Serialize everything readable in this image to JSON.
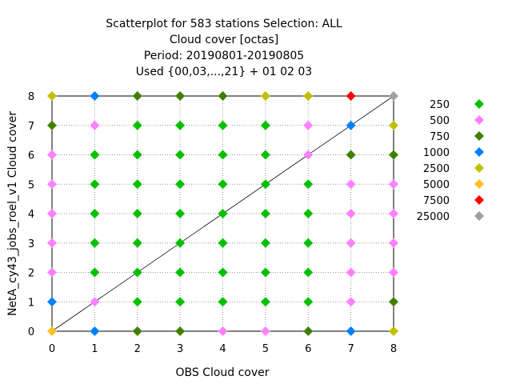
{
  "chart_data": {
    "type": "scatter",
    "title_lines": [
      "Scatterplot for  583 stations Selection: ALL",
      "Cloud cover [octas]",
      "Period: 20190801-20190805",
      "Used {00,03,...,21} + 01 02 03"
    ],
    "xlabel": "OBS Cloud cover",
    "ylabel": "NetA_cy43_jobs_roel_v1 Cloud cover",
    "xlim": [
      0,
      8
    ],
    "ylim": [
      0,
      8
    ],
    "xticks": [
      "0",
      "1",
      "2",
      "3",
      "4",
      "5",
      "6",
      "7",
      "8"
    ],
    "yticks": [
      "0",
      "1",
      "2",
      "3",
      "4",
      "5",
      "6",
      "7",
      "8"
    ],
    "grid": true,
    "diagonal": true,
    "legend_position": "right",
    "series": [
      {
        "name": "250",
        "color": "#00c000",
        "points": [
          [
            1,
            2
          ],
          [
            1,
            3
          ],
          [
            1,
            4
          ],
          [
            1,
            5
          ],
          [
            1,
            6
          ],
          [
            2,
            1
          ],
          [
            2,
            2
          ],
          [
            2,
            3
          ],
          [
            2,
            4
          ],
          [
            2,
            5
          ],
          [
            2,
            6
          ],
          [
            2,
            7
          ],
          [
            3,
            1
          ],
          [
            3,
            2
          ],
          [
            3,
            3
          ],
          [
            3,
            4
          ],
          [
            3,
            5
          ],
          [
            3,
            6
          ],
          [
            3,
            7
          ],
          [
            4,
            1
          ],
          [
            4,
            2
          ],
          [
            4,
            3
          ],
          [
            4,
            4
          ],
          [
            4,
            5
          ],
          [
            4,
            6
          ],
          [
            4,
            7
          ],
          [
            5,
            1
          ],
          [
            5,
            2
          ],
          [
            5,
            3
          ],
          [
            5,
            4
          ],
          [
            5,
            5
          ],
          [
            5,
            6
          ],
          [
            5,
            7
          ],
          [
            6,
            1
          ],
          [
            6,
            2
          ],
          [
            6,
            3
          ],
          [
            6,
            4
          ],
          [
            6,
            5
          ]
        ]
      },
      {
        "name": "500",
        "color": "#ff80ff",
        "points": [
          [
            0,
            2
          ],
          [
            0,
            3
          ],
          [
            0,
            4
          ],
          [
            0,
            5
          ],
          [
            0,
            6
          ],
          [
            1,
            1
          ],
          [
            1,
            7
          ],
          [
            4,
            0
          ],
          [
            5,
            0
          ],
          [
            6,
            6
          ],
          [
            6,
            7
          ],
          [
            7,
            1
          ],
          [
            7,
            2
          ],
          [
            7,
            3
          ],
          [
            7,
            4
          ],
          [
            7,
            5
          ],
          [
            8,
            2
          ],
          [
            8,
            3
          ],
          [
            8,
            4
          ],
          [
            8,
            5
          ]
        ]
      },
      {
        "name": "750",
        "color": "#408000",
        "points": [
          [
            0,
            7
          ],
          [
            2,
            0
          ],
          [
            2,
            8
          ],
          [
            3,
            0
          ],
          [
            3,
            8
          ],
          [
            4,
            8
          ],
          [
            6,
            0
          ],
          [
            7,
            6
          ],
          [
            8,
            1
          ],
          [
            8,
            6
          ]
        ]
      },
      {
        "name": "1000",
        "color": "#0080ff",
        "points": [
          [
            0,
            1
          ],
          [
            1,
            0
          ],
          [
            1,
            8
          ],
          [
            7,
            0
          ],
          [
            7,
            7
          ]
        ]
      },
      {
        "name": "2500",
        "color": "#c0c000",
        "points": [
          [
            0,
            8
          ],
          [
            5,
            8
          ],
          [
            6,
            8
          ],
          [
            8,
            0
          ],
          [
            8,
            7
          ]
        ]
      },
      {
        "name": "5000",
        "color": "#ffc020",
        "points": [
          [
            0,
            0
          ]
        ]
      },
      {
        "name": "7500",
        "color": "#ff0000",
        "points": [
          [
            7,
            8
          ]
        ]
      },
      {
        "name": "25000",
        "color": "#a0a0a0",
        "points": [
          [
            8,
            8
          ]
        ]
      }
    ]
  }
}
